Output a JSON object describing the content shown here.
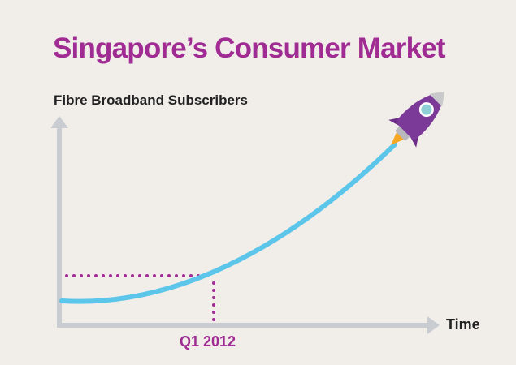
{
  "chart_data": {
    "type": "line",
    "title": "Singapore’s Consumer Market",
    "ylabel": "Fibre Broadband Subscribers",
    "xlabel": "Time",
    "annotation": "Q1 2012",
    "grid": false,
    "legend": "none",
    "shape": "accelerating growth curve with rocket at the end",
    "colors": {
      "title": "#a02b93",
      "curve": "#5bc5ea",
      "axes": "#c9cdd2",
      "guides": "#a02b93",
      "rocket": "#7b3a98",
      "background": "#f1eee9"
    }
  }
}
